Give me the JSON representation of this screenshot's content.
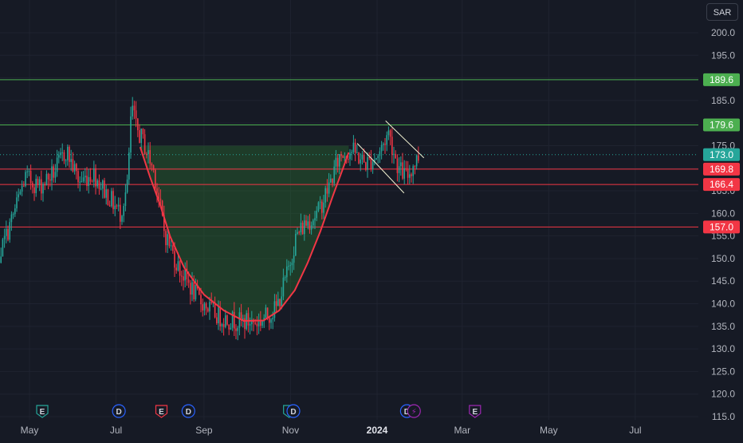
{
  "currency": {
    "label": "SAR"
  },
  "chart_data": {
    "type": "candlestick",
    "y_axis": {
      "min": 115.0,
      "max": 200.0,
      "ticks": [
        "200.0",
        "195.0",
        "190.0",
        "185.0",
        "180.0",
        "175.0",
        "170.0",
        "165.0",
        "160.0",
        "155.0",
        "150.0",
        "145.0",
        "140.0",
        "135.0",
        "130.0",
        "125.0",
        "120.0",
        "115.0"
      ],
      "position": "right"
    },
    "x_axis": {
      "labels": [
        {
          "label": "May",
          "date": "2023-05-01",
          "bold": false
        },
        {
          "label": "Jul",
          "date": "2023-07-01",
          "bold": false
        },
        {
          "label": "Sep",
          "date": "2023-09-01",
          "bold": false
        },
        {
          "label": "Nov",
          "date": "2023-11-01",
          "bold": false
        },
        {
          "label": "2024",
          "date": "2024-01-01",
          "bold": true
        },
        {
          "label": "Mar",
          "date": "2024-03-01",
          "bold": false
        },
        {
          "label": "May",
          "date": "2024-05-01",
          "bold": false
        },
        {
          "label": "Jul",
          "date": "2024-07-01",
          "bold": false
        }
      ]
    },
    "grid": true,
    "last_price": {
      "value": "173.0",
      "color": "#26a69a"
    },
    "price_levels": [
      {
        "value": "189.6",
        "color": "#4caf50"
      },
      {
        "value": "179.6",
        "color": "#4caf50"
      },
      {
        "value": "169.8",
        "color": "#f23645"
      },
      {
        "value": "166.4",
        "color": "#f23645"
      },
      {
        "value": "157.0",
        "color": "#f23645"
      }
    ],
    "event_markers": [
      {
        "letter": "E",
        "date": "2023-05-10",
        "kind": "earnings",
        "color": "#26a69a"
      },
      {
        "letter": "D",
        "date": "2023-07-03",
        "kind": "dividend",
        "color": "#2962ff"
      },
      {
        "letter": "E",
        "date": "2023-08-02",
        "kind": "earnings",
        "color": "#f23645"
      },
      {
        "letter": "D",
        "date": "2023-08-21",
        "kind": "dividend",
        "color": "#2962ff"
      },
      {
        "letter": "E",
        "date": "2023-10-31",
        "kind": "earnings",
        "color": "#26a69a"
      },
      {
        "letter": "D",
        "date": "2023-11-03",
        "kind": "dividend",
        "color": "#2962ff"
      },
      {
        "letter": "D",
        "date": "2024-01-22",
        "kind": "dividend",
        "color": "#2962ff"
      },
      {
        "letter": "⚡",
        "date": "2024-01-27",
        "kind": "split",
        "color": "#9c27b0"
      },
      {
        "letter": "E",
        "date": "2024-03-10",
        "kind": "earnings",
        "color": "#9c27b0"
      }
    ],
    "cup_pattern": {
      "fill_level": 175.0,
      "curve": [
        {
          "date": "2023-07-18",
          "price": 174.7
        },
        {
          "date": "2023-07-25",
          "price": 168
        },
        {
          "date": "2023-08-01",
          "price": 162
        },
        {
          "date": "2023-08-08",
          "price": 155
        },
        {
          "date": "2023-08-18",
          "price": 148
        },
        {
          "date": "2023-09-01",
          "price": 142
        },
        {
          "date": "2023-09-15",
          "price": 138.5
        },
        {
          "date": "2023-09-29",
          "price": 136.2
        },
        {
          "date": "2023-10-13",
          "price": 136.3
        },
        {
          "date": "2023-10-24",
          "price": 138.5
        },
        {
          "date": "2023-11-04",
          "price": 143
        },
        {
          "date": "2023-11-13",
          "price": 149
        },
        {
          "date": "2023-11-22",
          "price": 156
        },
        {
          "date": "2023-12-01",
          "price": 164
        },
        {
          "date": "2023-12-08",
          "price": 170
        },
        {
          "date": "2023-12-12",
          "price": 173.5
        }
      ],
      "line_color": "#f23645",
      "fill_color": "#2e7d32"
    },
    "channel_lines": [
      {
        "from": {
          "date": "2023-12-18",
          "price": 175.5
        },
        "to": {
          "date": "2024-01-20",
          "price": 164.5
        }
      },
      {
        "from": {
          "date": "2024-01-07",
          "price": 180.5
        },
        "to": {
          "date": "2024-02-03",
          "price": 172.3
        }
      }
    ],
    "trend": [
      {
        "date": "2023-04-01",
        "price": 152
      },
      {
        "date": "2023-04-10",
        "price": 151
      },
      {
        "date": "2023-04-20",
        "price": 160
      },
      {
        "date": "2023-04-28",
        "price": 168
      },
      {
        "date": "2023-05-08",
        "price": 166
      },
      {
        "date": "2023-05-18",
        "price": 169
      },
      {
        "date": "2023-05-27",
        "price": 174
      },
      {
        "date": "2023-06-05",
        "price": 167
      },
      {
        "date": "2023-06-15",
        "price": 169
      },
      {
        "date": "2023-06-25",
        "price": 164
      },
      {
        "date": "2023-07-04",
        "price": 160
      },
      {
        "date": "2023-07-09",
        "price": 166
      },
      {
        "date": "2023-07-12",
        "price": 184
      },
      {
        "date": "2023-07-15",
        "price": 179
      },
      {
        "date": "2023-07-20",
        "price": 176
      },
      {
        "date": "2023-07-28",
        "price": 169
      },
      {
        "date": "2023-08-04",
        "price": 156
      },
      {
        "date": "2023-08-14",
        "price": 148
      },
      {
        "date": "2023-08-28",
        "price": 141
      },
      {
        "date": "2023-09-12",
        "price": 137
      },
      {
        "date": "2023-09-26",
        "price": 136
      },
      {
        "date": "2023-10-10",
        "price": 136
      },
      {
        "date": "2023-10-22",
        "price": 139
      },
      {
        "date": "2023-10-30",
        "price": 147
      },
      {
        "date": "2023-11-05",
        "price": 155
      },
      {
        "date": "2023-11-12",
        "price": 158
      },
      {
        "date": "2023-11-20",
        "price": 160
      },
      {
        "date": "2023-11-28",
        "price": 166
      },
      {
        "date": "2023-12-06",
        "price": 173
      },
      {
        "date": "2023-12-14",
        "price": 174
      },
      {
        "date": "2023-12-24",
        "price": 171
      },
      {
        "date": "2024-01-02",
        "price": 173
      },
      {
        "date": "2024-01-09",
        "price": 178
      },
      {
        "date": "2024-01-16",
        "price": 170
      },
      {
        "date": "2024-01-22",
        "price": 168
      },
      {
        "date": "2024-01-27",
        "price": 171
      },
      {
        "date": "2024-01-31",
        "price": 173
      }
    ]
  }
}
